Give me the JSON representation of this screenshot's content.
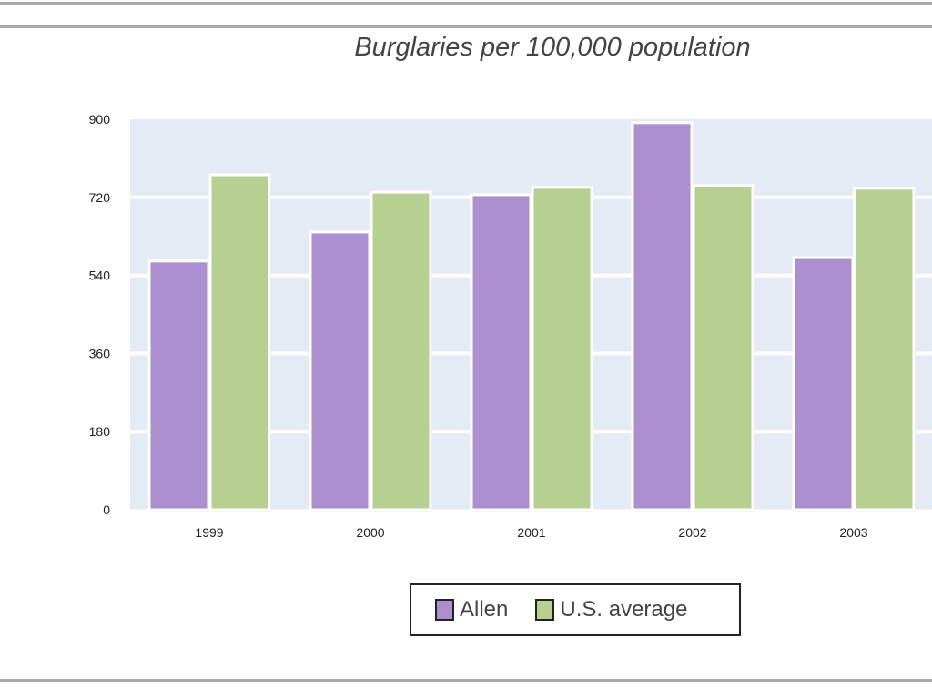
{
  "chart_data": {
    "type": "bar",
    "title": "Burglaries per 100,000 population",
    "xlabel": "",
    "ylabel": "",
    "categories": [
      "1999",
      "2000",
      "2001",
      "2002",
      "2003"
    ],
    "series": [
      {
        "name": "Allen",
        "color": "#ac8fcf",
        "values": [
          573,
          640,
          726,
          892,
          581
        ]
      },
      {
        "name": "U.S. average",
        "color": "#b7d092",
        "values": [
          772,
          732,
          743,
          747,
          741
        ]
      }
    ],
    "ylim": [
      0,
      900
    ],
    "yticks": [
      "0",
      "180",
      "360",
      "540",
      "720",
      "900"
    ],
    "grid": true,
    "legend_position": "bottom"
  }
}
